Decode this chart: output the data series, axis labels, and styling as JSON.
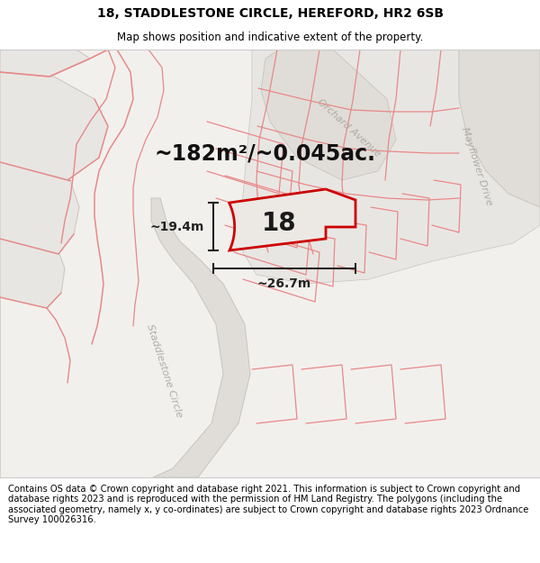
{
  "title_line1": "18, STADDLESTONE CIRCLE, HEREFORD, HR2 6SB",
  "title_line2": "Map shows position and indicative extent of the property.",
  "area_text": "~182m²/~0.045ac.",
  "number_label": "18",
  "dim_height": "~19.4m",
  "dim_width": "~26.7m",
  "street_label1": "Staddlestone Circle",
  "street_label2": "Orchard Avenue",
  "street_label3": "Mayflower Drive",
  "footer_text": "Contains OS data © Crown copyright and database right 2021. This information is subject to Crown copyright and database rights 2023 and is reproduced with the permission of HM Land Registry. The polygons (including the associated geometry, namely x, y co-ordinates) are subject to Crown copyright and database rights 2023 Ordnance Survey 100026316.",
  "map_bg": "#f2f0ed",
  "block_fill": "#e8e6e3",
  "block_edge": "#d0c8c0",
  "road_fill": "#e0ddd8",
  "road_edge": "#c8c4be",
  "green_fill": "#e8ece2",
  "green_edge": "#d0d4c4",
  "pink_line": "#e88888",
  "red_line": "#cc0000",
  "prop_fill": "#ece8e4",
  "dim_color": "#222222",
  "street_color": "#b0aba4",
  "title_fs": 10,
  "subtitle_fs": 8.5,
  "area_fs": 17,
  "num_fs": 20,
  "dim_fs": 10,
  "street_fs": 8,
  "footer_fs": 7.2
}
